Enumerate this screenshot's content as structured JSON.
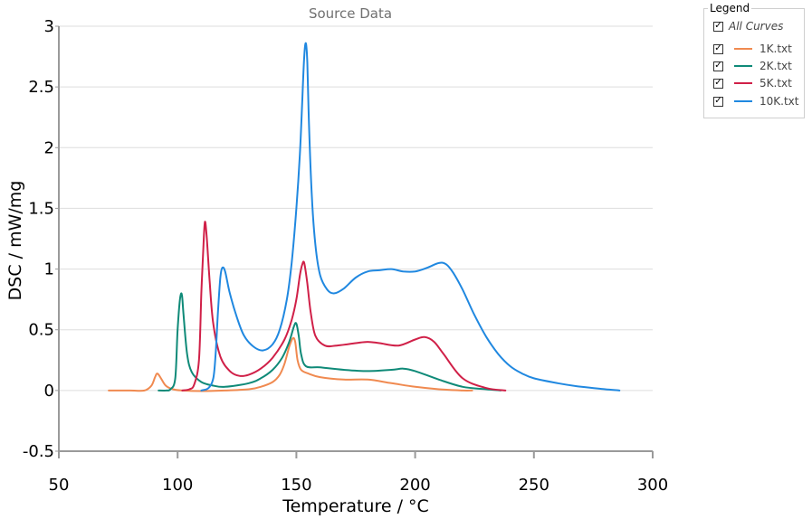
{
  "chart_data": {
    "type": "line",
    "title": "Source Data",
    "xlabel": "Temperature / °C",
    "ylabel": "DSC / mW/mg",
    "xlim": [
      50,
      300
    ],
    "ylim": [
      -0.5,
      3
    ],
    "xticks": [
      50,
      100,
      150,
      200,
      250,
      300
    ],
    "yticks": [
      -0.5,
      0,
      0.5,
      1,
      1.5,
      2,
      2.5,
      3
    ],
    "ytick_labels": [
      "-0.5",
      "0",
      "0.5",
      "1",
      "1.5",
      "2",
      "2.5",
      "3"
    ],
    "grid": "horizontal",
    "legend_position": "top-right",
    "series": [
      {
        "name": "1K.txt",
        "color": "#f08a50",
        "x": [
          71,
          80,
          86,
          89,
          90.5,
          91.5,
          93,
          95,
          98,
          102,
          110,
          120,
          130,
          135,
          140,
          143,
          145,
          147,
          148.5,
          149.5,
          150.5,
          152,
          155,
          160,
          170,
          180,
          190,
          200,
          210,
          220,
          224
        ],
        "y": [
          0,
          0,
          0,
          0.04,
          0.11,
          0.14,
          0.1,
          0.04,
          0.01,
          0,
          -0.005,
          0,
          0.01,
          0.03,
          0.07,
          0.13,
          0.22,
          0.36,
          0.43,
          0.4,
          0.25,
          0.17,
          0.14,
          0.11,
          0.09,
          0.09,
          0.06,
          0.03,
          0.01,
          0,
          0
        ]
      },
      {
        "name": "2K.txt",
        "color": "#0f8a78",
        "x": [
          92,
          95,
          97,
          99,
          100,
          101,
          101.8,
          102.5,
          104,
          106,
          110,
          115,
          120,
          130,
          135,
          140,
          144,
          147,
          149,
          150,
          151,
          152,
          154,
          160,
          170,
          180,
          190,
          195,
          200,
          210,
          220,
          230,
          236
        ],
        "y": [
          0,
          0,
          0.01,
          0.1,
          0.5,
          0.75,
          0.79,
          0.62,
          0.3,
          0.15,
          0.07,
          0.04,
          0.03,
          0.06,
          0.1,
          0.17,
          0.27,
          0.4,
          0.53,
          0.55,
          0.45,
          0.3,
          0.2,
          0.19,
          0.17,
          0.16,
          0.17,
          0.18,
          0.16,
          0.09,
          0.03,
          0.01,
          0
        ]
      },
      {
        "name": "5K.txt",
        "color": "#d02048",
        "x": [
          102,
          105,
          107,
          109,
          110,
          111,
          111.5,
          112.2,
          113.5,
          115,
          118,
          122,
          126,
          130,
          135,
          140,
          145,
          148,
          150,
          151.5,
          152.5,
          153.3,
          154.5,
          156,
          158,
          162,
          167,
          175,
          180,
          185,
          193,
          200,
          204,
          208,
          212,
          220,
          230,
          238
        ],
        "y": [
          0,
          0.01,
          0.05,
          0.25,
          0.8,
          1.25,
          1.39,
          1.28,
          0.9,
          0.55,
          0.28,
          0.16,
          0.12,
          0.13,
          0.18,
          0.27,
          0.42,
          0.58,
          0.75,
          0.95,
          1.04,
          1.05,
          0.9,
          0.65,
          0.45,
          0.37,
          0.37,
          0.39,
          0.4,
          0.39,
          0.37,
          0.42,
          0.44,
          0.4,
          0.3,
          0.1,
          0.02,
          0
        ]
      },
      {
        "name": "10K.txt",
        "color": "#2088e0",
        "x": [
          110,
          113,
          115,
          116,
          117,
          118,
          118.8,
          120,
          122,
          125,
          128,
          132,
          136,
          140,
          143,
          146,
          148,
          150,
          151.5,
          152.5,
          153.3,
          154,
          154.6,
          155.3,
          156.5,
          158,
          160,
          163,
          166,
          170,
          175,
          180,
          185,
          190,
          195,
          200,
          205,
          210,
          213,
          216,
          220,
          225,
          230,
          235,
          240,
          245,
          250,
          260,
          270,
          280,
          286
        ],
        "y": [
          0,
          0.02,
          0.1,
          0.3,
          0.65,
          0.93,
          1.01,
          0.98,
          0.8,
          0.6,
          0.45,
          0.36,
          0.33,
          0.38,
          0.5,
          0.75,
          1.05,
          1.5,
          1.95,
          2.4,
          2.75,
          2.86,
          2.7,
          2.2,
          1.6,
          1.2,
          0.95,
          0.83,
          0.8,
          0.84,
          0.93,
          0.98,
          0.99,
          1.0,
          0.98,
          0.98,
          1.01,
          1.05,
          1.04,
          0.97,
          0.83,
          0.62,
          0.44,
          0.3,
          0.2,
          0.14,
          0.1,
          0.06,
          0.03,
          0.01,
          0
        ]
      }
    ]
  },
  "legend": {
    "caption": "Legend",
    "all_label": "All Curves",
    "checkmark": "✓"
  }
}
